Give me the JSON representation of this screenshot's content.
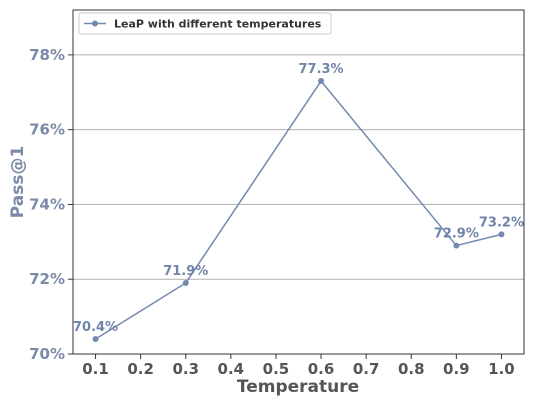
{
  "chart_data": {
    "type": "line",
    "x": [
      0.1,
      0.3,
      0.6,
      0.9,
      1.0
    ],
    "series": [
      {
        "name": "LeaP with different temperatures",
        "values": [
          70.4,
          71.9,
          77.3,
          72.9,
          73.2
        ],
        "labels": [
          "70.4%",
          "71.9%",
          "77.3%",
          "72.9%",
          "73.2%"
        ],
        "color": "#7489b0"
      }
    ],
    "xlabel": "Temperature",
    "ylabel": "Pass@1",
    "xlim": [
      0.05,
      1.05
    ],
    "ylim": [
      70,
      79.2
    ],
    "xticks": [
      0.1,
      0.2,
      0.3,
      0.4,
      0.5,
      0.6,
      0.7,
      0.8,
      0.9,
      1.0
    ],
    "xtick_labels": [
      "0.1",
      "0.2",
      "0.3",
      "0.4",
      "0.5",
      "0.6",
      "0.7",
      "0.8",
      "0.9",
      "1.0"
    ],
    "yticks": [
      70,
      72,
      74,
      76,
      78
    ],
    "ytick_labels": [
      "70%",
      "72%",
      "74%",
      "76%",
      "78%"
    ],
    "grid": "horizontal",
    "legend_position": "top-left"
  }
}
